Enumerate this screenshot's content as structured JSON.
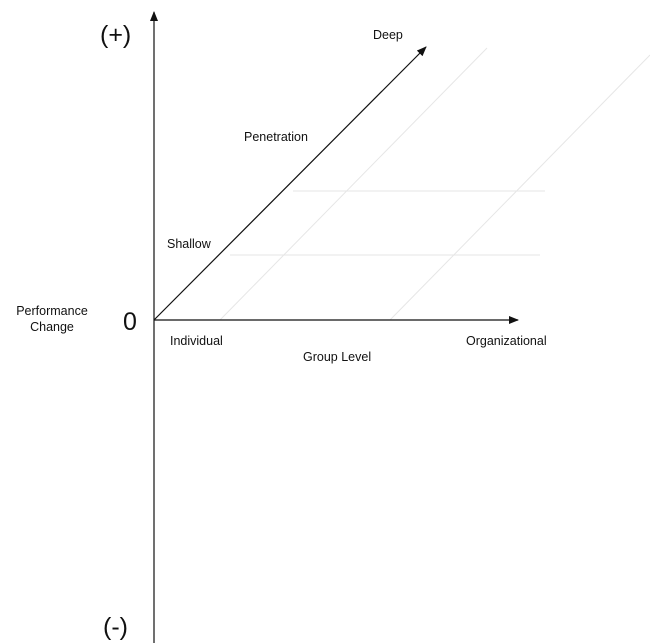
{
  "axes": {
    "y_positive": "(+)",
    "y_negative": "(-)",
    "origin": "0",
    "y_title_line1": "Performance",
    "y_title_line2": "Change",
    "x_title": "Group Level"
  },
  "x_levels": {
    "start": "Individual",
    "end": "Organizational"
  },
  "penetration": {
    "title": "Penetration",
    "low": "Shallow",
    "high": "Deep"
  },
  "colors": {
    "axis": "#111111",
    "guide": "#e6e6e6"
  }
}
